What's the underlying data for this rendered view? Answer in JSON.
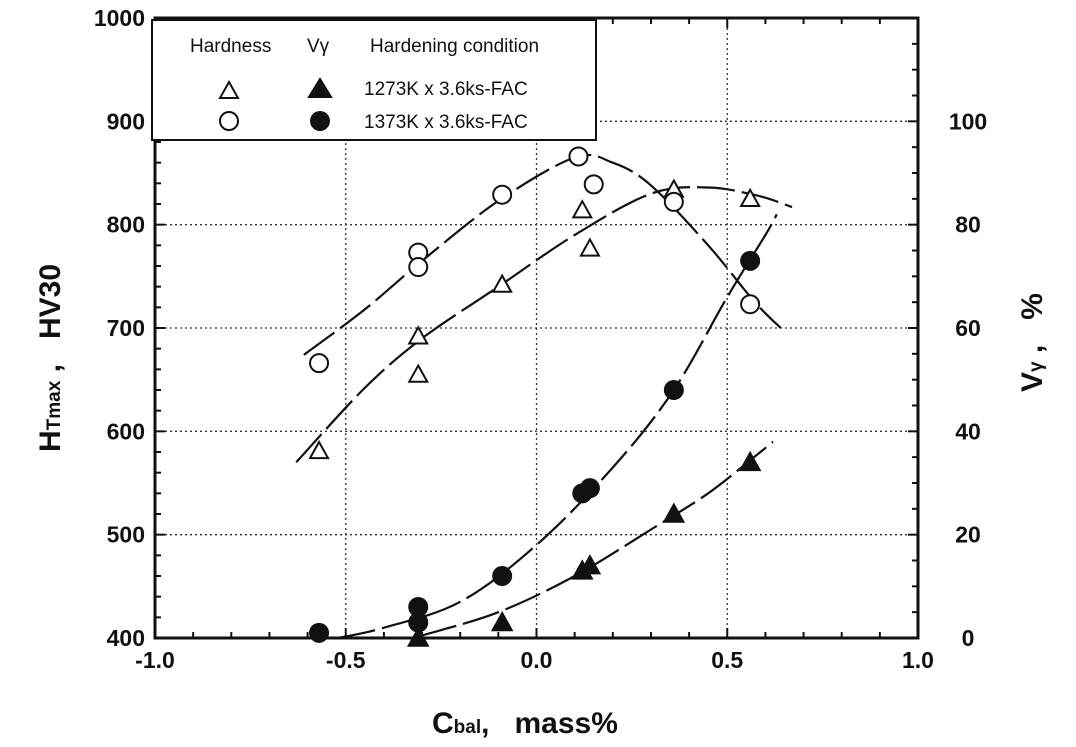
{
  "chart_data": {
    "type": "scatter",
    "x_axis": {
      "label": "C",
      "label_sub": "bal",
      "label_unit": ",   mass%",
      "range": [
        -1.0,
        1.0
      ],
      "ticks": [
        "-1.0",
        "-0.5",
        "0.0",
        "0.5",
        "1.0"
      ],
      "tick_values": [
        -1.0,
        -0.5,
        0.0,
        0.5,
        1.0
      ]
    },
    "y_left": {
      "label": "H",
      "label_sub": "Tmax",
      "label_unit": " ,   HV30",
      "range": [
        400,
        1000
      ],
      "ticks": [
        "400",
        "500",
        "600",
        "700",
        "800",
        "900",
        "1000"
      ],
      "tick_values": [
        400,
        500,
        600,
        700,
        800,
        900,
        1000
      ]
    },
    "y_right": {
      "label": "V",
      "label_sub": "γ",
      "label_unit": " ,   %",
      "range": [
        0,
        120
      ],
      "ticks": [
        "0",
        "20",
        "40",
        "60",
        "80",
        "100"
      ],
      "tick_values": [
        0,
        20,
        40,
        60,
        80,
        100
      ]
    },
    "grid": true,
    "legend": {
      "position": "top-left",
      "headers": [
        "Hardness",
        "Vγ",
        "Hardening condition"
      ],
      "rows": [
        {
          "hardness_marker": "open-triangle",
          "vgamma_marker": "filled-triangle",
          "condition": "1273K x 3.6ks-FAC"
        },
        {
          "hardness_marker": "open-circle",
          "vgamma_marker": "filled-circle",
          "condition": "1373K x 3.6ks-FAC"
        }
      ]
    },
    "series": [
      {
        "name": "1273K x 3.6ks-FAC",
        "kind": "hardness",
        "axis": "left",
        "marker": "open-triangle",
        "points": [
          [
            -0.57,
            581
          ],
          [
            -0.31,
            692
          ],
          [
            -0.31,
            655
          ],
          [
            -0.09,
            742
          ],
          [
            0.12,
            814
          ],
          [
            0.14,
            777
          ],
          [
            0.36,
            834
          ],
          [
            0.56,
            825
          ]
        ],
        "curve": [
          [
            -0.63,
            570
          ],
          [
            -0.45,
            642
          ],
          [
            -0.3,
            690
          ],
          [
            -0.1,
            740
          ],
          [
            0.1,
            790
          ],
          [
            0.3,
            830
          ],
          [
            0.45,
            836
          ],
          [
            0.58,
            828
          ],
          [
            0.67,
            817
          ]
        ]
      },
      {
        "name": "1373K x 3.6ks-FAC",
        "kind": "hardness",
        "axis": "left",
        "marker": "open-circle",
        "points": [
          [
            -0.57,
            666
          ],
          [
            -0.31,
            773
          ],
          [
            -0.31,
            759
          ],
          [
            -0.09,
            829
          ],
          [
            0.11,
            866
          ],
          [
            0.15,
            839
          ],
          [
            0.36,
            822
          ],
          [
            0.56,
            723
          ]
        ],
        "curve": [
          [
            -0.61,
            674
          ],
          [
            -0.45,
            718
          ],
          [
            -0.3,
            765
          ],
          [
            -0.1,
            823
          ],
          [
            0.1,
            865
          ],
          [
            0.2,
            860
          ],
          [
            0.3,
            838
          ],
          [
            0.45,
            780
          ],
          [
            0.57,
            726
          ],
          [
            0.64,
            700
          ]
        ]
      },
      {
        "name": "1273K x 3.6ks-FAC",
        "kind": "v_gamma",
        "axis": "right",
        "marker": "filled-triangle",
        "points": [
          [
            -0.31,
            0
          ],
          [
            -0.09,
            3
          ],
          [
            0.12,
            13
          ],
          [
            0.14,
            14
          ],
          [
            0.36,
            24
          ],
          [
            0.56,
            34
          ]
        ],
        "curve": [
          [
            -0.42,
            -2
          ],
          [
            -0.3,
            0.5
          ],
          [
            -0.1,
            5
          ],
          [
            0.1,
            12
          ],
          [
            0.3,
            21
          ],
          [
            0.45,
            28
          ],
          [
            0.57,
            35
          ],
          [
            0.62,
            38
          ]
        ]
      },
      {
        "name": "1373K x 3.6ks-FAC",
        "kind": "v_gamma",
        "axis": "right",
        "marker": "filled-circle",
        "points": [
          [
            -0.57,
            1
          ],
          [
            -0.31,
            6
          ],
          [
            -0.31,
            3
          ],
          [
            -0.09,
            12
          ],
          [
            0.12,
            28
          ],
          [
            0.14,
            29
          ],
          [
            0.36,
            48
          ],
          [
            0.56,
            73
          ]
        ],
        "curve": [
          [
            -0.52,
            0
          ],
          [
            -0.4,
            2
          ],
          [
            -0.2,
            7
          ],
          [
            0.0,
            18
          ],
          [
            0.2,
            33
          ],
          [
            0.36,
            48
          ],
          [
            0.5,
            66
          ],
          [
            0.6,
            78
          ],
          [
            0.63,
            82
          ]
        ]
      }
    ]
  }
}
